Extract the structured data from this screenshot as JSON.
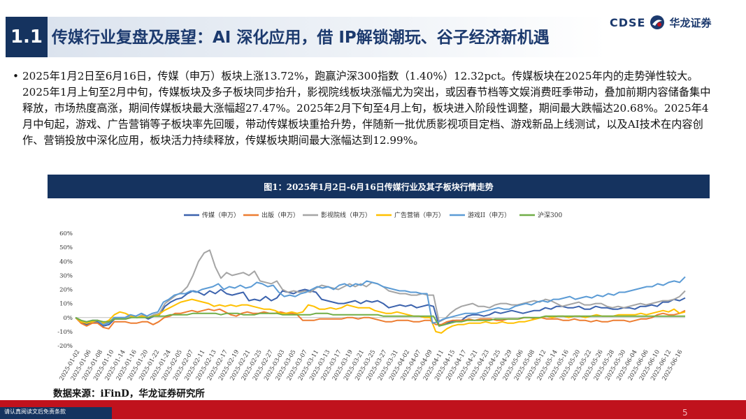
{
  "header": {
    "section_number": "1.1",
    "title": "传媒行业复盘及展望：AI 深化应用，借 IP解锁潮玩、谷子经济新机遇",
    "logo_text": "CDSE",
    "logo_cn": "华龙证券"
  },
  "body": {
    "bullet": "2025年1月2日至6月16日，传媒（申万）板块上涨13.72%，跑赢沪深300指数（1.40%）12.32pct。传媒板块在2025年内的走势弹性较大。2025年1月上旬至2月中旬，传媒板块及多子板块同步抬升，影视院线板块涨幅尤为突出，或因春节档等文娱消费旺季带动，叠加前期内容储备集中释放，市场热度高涨，期间传媒板块最大涨幅超27.47%。2025年2月下旬至4月上旬，板块进入阶段性调整，期间最大跌幅达20.68%。2025年4月中旬起，游戏、广告营销等子板块率先回暖，带动传媒板块重拾升势，伴随新一批优质影视项目定档、游戏新品上线测试，以及AI技术在内容创作、营销投放中深化应用，板块活力持续释放，传媒板块期间最大涨幅达到12.99%。"
  },
  "figure": {
    "title": "图1：2025年1月2日-6月16日传媒行业及其子板块行情走势",
    "source": "数据来源：iFinD，华龙证券研究所"
  },
  "footer": {
    "disclaimer": "请认真阅读文后免责条款",
    "page": "5"
  },
  "chart_data": {
    "type": "line",
    "ylim": [
      -20,
      60
    ],
    "yticks": [
      "60%",
      "50%",
      "40%",
      "30%",
      "20%",
      "10%",
      "0%",
      "-10%",
      "-20%"
    ],
    "legend_position": "top",
    "x_tick_labels": [
      "2025-01-02",
      "2025-01-06",
      "2025-01-08",
      "2025-01-10",
      "2025-01-14",
      "2025-01-16",
      "2025-01-20",
      "2025-01-22",
      "2025-01-24",
      "2025-02-05",
      "2025-02-07",
      "2025-02-11",
      "2025-02-13",
      "2025-02-17",
      "2025-02-19",
      "2025-02-21",
      "2025-02-25",
      "2025-02-27",
      "2025-03-03",
      "2025-03-05",
      "2025-03-07",
      "2025-03-11",
      "2025-03-13",
      "2025-03-17",
      "2025-03-19",
      "2025-03-21",
      "2025-03-25",
      "2025-03-27",
      "2025-03-31",
      "2025-04-02",
      "2025-04-07",
      "2025-04-09",
      "2025-04-11",
      "2025-04-15",
      "2025-04-17",
      "2025-04-21",
      "2025-04-23",
      "2025-04-25",
      "2025-04-29",
      "2025-05-06",
      "2025-05-08",
      "2025-05-12",
      "2025-05-14",
      "2025-05-16",
      "2025-05-20",
      "2025-05-22",
      "2025-05-26",
      "2025-05-28",
      "2025-05-30",
      "2025-06-04",
      "2025-06-06",
      "2025-06-10",
      "2025-06-12",
      "2025-06-16"
    ],
    "series": [
      {
        "name": "传媒（申万）",
        "color": "#3b62ad",
        "values": [
          0,
          -3,
          -5,
          -3,
          -3,
          -6,
          -5,
          -1,
          -1,
          -1,
          1,
          0,
          1,
          -1,
          1,
          2,
          8,
          11,
          13,
          14,
          17,
          19,
          18,
          16,
          19,
          17,
          20,
          17,
          16,
          17,
          18,
          12,
          13,
          12,
          15,
          12,
          14,
          19,
          18,
          17,
          19,
          20,
          19,
          18,
          13,
          12,
          11,
          10,
          10,
          11,
          12,
          10,
          12,
          11,
          12,
          10,
          7,
          8,
          9,
          8,
          9,
          7,
          8,
          9,
          8,
          -6,
          -5,
          -3,
          -2,
          -2,
          1,
          2,
          2,
          1,
          2,
          4,
          3,
          4,
          5,
          4,
          3,
          4,
          5,
          5,
          7,
          6,
          8,
          8,
          7,
          7,
          8,
          6,
          6,
          8,
          7,
          7,
          6,
          6,
          7,
          7,
          6,
          8,
          8,
          9,
          8,
          11,
          11,
          13,
          12,
          14
        ]
      },
      {
        "name": "出版（申万）",
        "color": "#ed7d31",
        "values": [
          0,
          -4,
          -6,
          -4,
          -4,
          -7,
          -8,
          -3,
          -3,
          -3,
          -4,
          -4,
          -3,
          -3,
          -5,
          -3,
          0,
          1,
          3,
          3,
          4,
          5,
          4,
          5,
          6,
          5,
          6,
          4,
          2,
          1,
          3,
          4,
          3,
          3,
          4,
          3,
          3,
          4,
          3,
          3,
          2,
          -2,
          -2,
          -2,
          -1,
          -1,
          -1,
          -1,
          -1,
          0,
          0,
          -1,
          0,
          0,
          -1,
          -2,
          -3,
          -3,
          -2,
          -2,
          -2,
          -3,
          -3,
          -2,
          -2,
          -5,
          -5,
          -3,
          -2,
          -2,
          -2,
          -1,
          -2,
          -1,
          -1,
          -1,
          -2,
          -2,
          -1,
          -1,
          -1,
          0,
          0,
          -1,
          0,
          -1,
          -1,
          -1,
          -2,
          -2,
          -1,
          -2,
          -2,
          -3,
          -2,
          -3,
          -3,
          -2,
          -2,
          -2,
          -3,
          -2,
          -1,
          -1,
          0,
          2,
          3,
          2,
          2,
          3,
          5
        ]
      },
      {
        "name": "影视院线（申万）",
        "color": "#a5a5a5",
        "values": [
          0,
          -2,
          -4,
          -2,
          -2,
          -4,
          -3,
          0,
          0,
          0,
          1,
          0,
          2,
          0,
          2,
          3,
          10,
          13,
          16,
          18,
          22,
          30,
          40,
          46,
          48,
          36,
          28,
          32,
          30,
          31,
          32,
          30,
          33,
          26,
          25,
          24,
          26,
          20,
          18,
          19,
          18,
          19,
          18,
          21,
          23,
          22,
          21,
          20,
          22,
          24,
          22,
          24,
          22,
          25,
          24,
          22,
          19,
          18,
          17,
          17,
          16,
          16,
          17,
          16,
          16,
          -3,
          -1,
          3,
          6,
          8,
          9,
          10,
          8,
          8,
          7,
          9,
          10,
          10,
          9,
          9,
          10,
          11,
          12,
          11,
          13,
          12,
          10,
          8,
          9,
          10,
          11,
          9,
          9,
          10,
          10,
          8,
          7,
          8,
          7,
          8,
          9,
          10,
          9,
          10,
          11,
          12,
          12,
          13,
          15,
          19
        ]
      },
      {
        "name": "广告营销（申万）",
        "color": "#ffc000",
        "values": [
          0,
          -3,
          -4,
          -3,
          -2,
          -4,
          -2,
          2,
          4,
          3,
          1,
          0,
          1,
          0,
          1,
          2,
          5,
          7,
          9,
          11,
          12,
          13,
          12,
          11,
          10,
          8,
          9,
          8,
          9,
          8,
          9,
          9,
          8,
          7,
          6,
          6,
          5,
          3,
          3,
          4,
          3,
          4,
          9,
          8,
          6,
          6,
          7,
          6,
          7,
          9,
          8,
          7,
          7,
          7,
          5,
          4,
          3,
          3,
          4,
          3,
          2,
          1,
          1,
          0,
          0,
          -10,
          -11,
          -8,
          -6,
          -5,
          -5,
          -4,
          -4,
          -4,
          -3,
          -4,
          -4,
          -3,
          -4,
          -4,
          -3,
          -3,
          -2,
          -1,
          0,
          1,
          0,
          1,
          1,
          0,
          1,
          1,
          0,
          1,
          2,
          1,
          1,
          1,
          2,
          2,
          2,
          2,
          3,
          2,
          3,
          4,
          5,
          4,
          6,
          3,
          4
        ]
      },
      {
        "name": "游戏II（申万）",
        "color": "#5b9bd5",
        "values": [
          0,
          -2,
          -3,
          -2,
          -2,
          -5,
          -4,
          0,
          0,
          0,
          2,
          1,
          3,
          1,
          3,
          4,
          11,
          13,
          16,
          17,
          17,
          19,
          18,
          20,
          21,
          22,
          24,
          20,
          22,
          21,
          23,
          21,
          22,
          25,
          24,
          22,
          23,
          18,
          15,
          16,
          15,
          17,
          18,
          20,
          22,
          21,
          22,
          20,
          23,
          24,
          22,
          24,
          23,
          26,
          25,
          24,
          22,
          21,
          20,
          19,
          19,
          18,
          18,
          17,
          17,
          -4,
          -3,
          -1,
          0,
          1,
          2,
          3,
          3,
          3,
          4,
          5,
          6,
          7,
          6,
          6,
          8,
          9,
          10,
          9,
          11,
          12,
          11,
          13,
          13,
          14,
          15,
          13,
          14,
          15,
          14,
          16,
          15,
          17,
          16,
          18,
          18,
          19,
          20,
          21,
          22,
          22,
          24,
          23,
          25,
          26,
          25,
          29
        ]
      },
      {
        "name": "沪深300",
        "color": "#70ad47",
        "values": [
          0,
          -2,
          -3,
          -2,
          -2,
          -3,
          -3,
          -1,
          -1,
          -1,
          0,
          0,
          0,
          0,
          1,
          1,
          1,
          2,
          2,
          2,
          2,
          3,
          3,
          3,
          3,
          3,
          2,
          3,
          3,
          3,
          2,
          2,
          2,
          3,
          3,
          3,
          3,
          2,
          2,
          2,
          2,
          2,
          2,
          3,
          3,
          3,
          2,
          2,
          2,
          2,
          2,
          2,
          2,
          2,
          2,
          1,
          1,
          1,
          1,
          1,
          1,
          1,
          1,
          1,
          1,
          -6,
          -5,
          -4,
          -3,
          -3,
          -2,
          -2,
          -2,
          -2,
          -2,
          -1,
          -1,
          -1,
          -1,
          -1,
          0,
          0,
          0,
          0,
          1,
          1,
          1,
          1,
          1,
          1,
          1,
          1,
          1,
          1,
          1,
          1,
          1,
          1,
          1,
          1,
          1,
          1,
          1,
          1,
          1,
          1,
          1,
          1,
          1,
          1
        ]
      }
    ]
  }
}
